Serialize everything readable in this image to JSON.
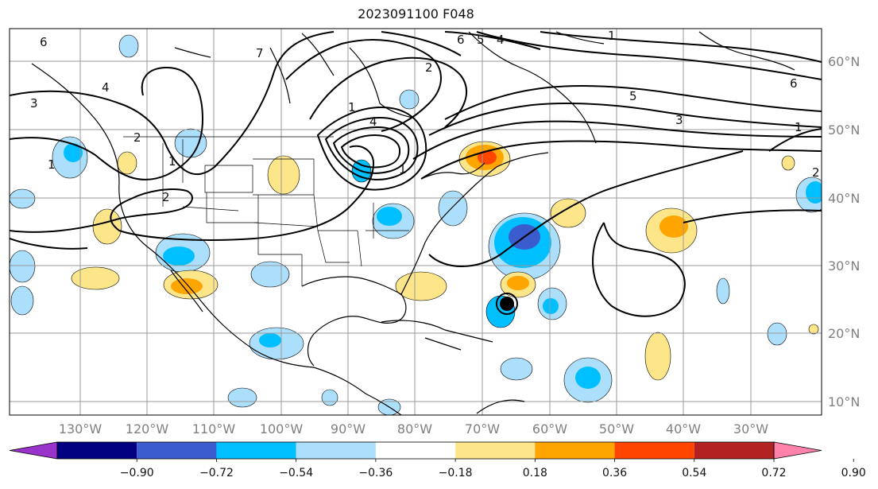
{
  "title": "2023091100 F048",
  "map": {
    "lon_labels": [
      "130°W",
      "120°W",
      "110°W",
      "100°W",
      "90°W",
      "80°W",
      "70°W",
      "60°W",
      "50°W",
      "40°W",
      "30°W"
    ],
    "lat_labels": [
      "60°N",
      "50°N",
      "40°N",
      "30°N",
      "20°N",
      "10°N"
    ],
    "contour_labels": [
      "6",
      "4",
      "1",
      "2",
      "1",
      "7",
      "2",
      "6",
      "5",
      "4",
      "1",
      "4",
      "5",
      "3",
      "1",
      "6",
      "1",
      "2",
      "3",
      "1",
      "2"
    ],
    "colors": {
      "land_outline": "#000000",
      "gridline": "#999999",
      "contour": "#000000"
    }
  },
  "colorbar": {
    "ticks": [
      "−0.90",
      "−0.72",
      "−0.54",
      "−0.36",
      "−0.18",
      "0.18",
      "0.36",
      "0.54",
      "0.72",
      "0.90"
    ],
    "colors": [
      "#9a33cc",
      "#000080",
      "#3a5ccc",
      "#00bfff",
      "#abdffb",
      "#ffffff",
      "#fde68a",
      "#ffa500",
      "#ff4500",
      "#b22222",
      "#ff82ab"
    ]
  }
}
